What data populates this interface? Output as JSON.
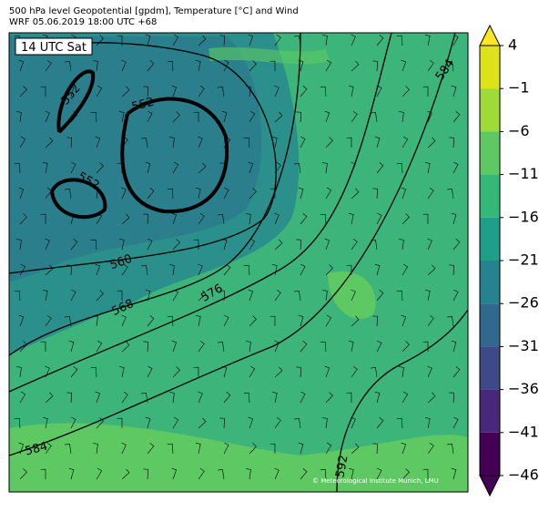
{
  "header": {
    "line1": "500 hPa level Geopotential [gpdm], Temperature [°C] and Wind",
    "line2": "WRF 05.06.2019 18:00 UTC +68"
  },
  "map": {
    "time_label": "14 UTC Sat",
    "contour_labels": [
      "552",
      "552",
      "552",
      "560",
      "568",
      "576",
      "584",
      "584",
      "592"
    ],
    "credit": "© Meteorological Institute Munich, LMU"
  },
  "colorbar": {
    "ticks": [
      4,
      {
        "value": -1,
        "label": "−1"
      },
      {
        "value": -6,
        "label": "−6"
      },
      {
        "value": -11,
        "label": "−11"
      },
      {
        "value": -16,
        "label": "−16"
      },
      {
        "value": -21,
        "label": "−21"
      },
      {
        "value": -26,
        "label": "−26"
      },
      {
        "value": -31,
        "label": "−31"
      },
      {
        "value": -36,
        "label": "−36"
      },
      {
        "value": -41,
        "label": "−41"
      },
      {
        "value": -46,
        "label": "−46"
      }
    ],
    "colors": [
      "#dde318",
      "#a0da39",
      "#5ec962",
      "#35b779",
      "#1f9e89",
      "#26828e",
      "#31688e",
      "#3e4989",
      "#482878",
      "#440154"
    ],
    "over": "#fde725",
    "under": "#440154"
  }
}
